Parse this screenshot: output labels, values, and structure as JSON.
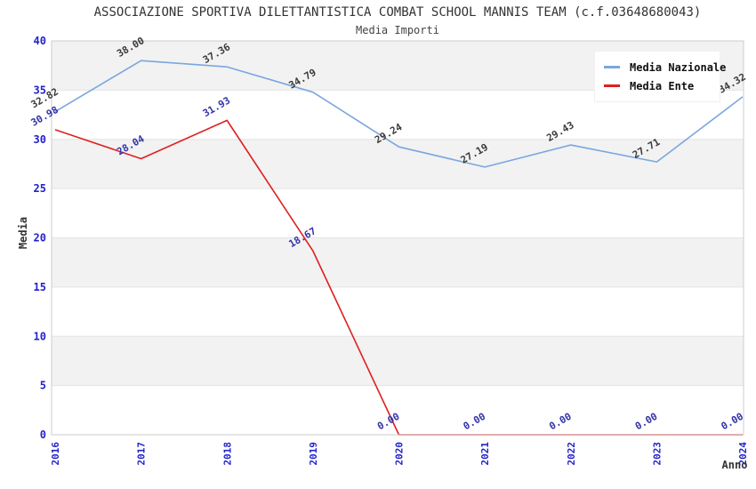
{
  "header": {
    "title": "ASSOCIAZIONE SPORTIVA DILETTANTISTICA COMBAT SCHOOL MANNIS TEAM (c.f.03648680043)",
    "subtitle": "Media Importi"
  },
  "legend": {
    "items": [
      {
        "label": "Media Nazionale",
        "color": "#7aa6e0"
      },
      {
        "label": "Media Ente",
        "color": "#e02020"
      }
    ]
  },
  "chart_data": {
    "type": "line",
    "title": "ASSOCIAZIONE SPORTIVA DILETTANTISTICA COMBAT SCHOOL MANNIS TEAM (c.f.03648680043)",
    "subtitle": "Media Importi",
    "xlabel": "Anno",
    "ylabel": "Media",
    "x": [
      2016,
      2017,
      2018,
      2019,
      2020,
      2021,
      2022,
      2023,
      2024
    ],
    "series": [
      {
        "name": "Media Nazionale",
        "color": "#7aa6e0",
        "label_color": "#3a3a3a",
        "values": [
          32.82,
          38.0,
          37.36,
          34.79,
          29.24,
          27.19,
          29.43,
          27.71,
          34.32
        ]
      },
      {
        "name": "Media Ente",
        "color": "#e02020",
        "label_color": "#3333aa",
        "values": [
          30.98,
          28.04,
          31.93,
          18.67,
          0.0,
          0.0,
          0.0,
          0.0,
          0.0
        ]
      }
    ],
    "ylim": [
      0,
      40
    ],
    "yticks": [
      0,
      5,
      10,
      15,
      20,
      25,
      30,
      35,
      40
    ],
    "grid": true,
    "band_color": "#f2f2f2",
    "grid_color": "#e4e4e4",
    "border_color": "#cccccc",
    "tick_color": "#2222cc",
    "axis_title_color": "#333333",
    "legend_position": "top-right",
    "data_labels": true,
    "data_label_rotation": -30,
    "x_tick_rotation": -90
  }
}
